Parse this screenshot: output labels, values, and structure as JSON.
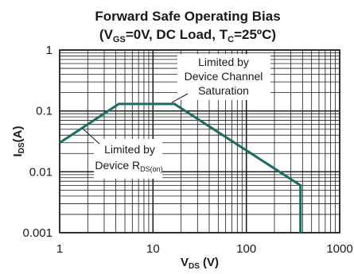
{
  "chart_data": {
    "type": "line",
    "title": {
      "line1": "Forward Safe Operating Bias",
      "line2": {
        "open": "(V",
        "vgs_sub": "GS",
        "mid": "=0V, DC Load, T",
        "tc_sub": "C",
        "close": "=25ºC)"
      }
    },
    "xlabel": {
      "main": "V",
      "sub": "DS",
      "unit": " (V)"
    },
    "ylabel": {
      "main": "I",
      "sub": "DS",
      "unit": "(A)"
    },
    "x_scale": "log",
    "y_scale": "log",
    "xlim": [
      1,
      1000
    ],
    "ylim": [
      0.001,
      1
    ],
    "x_ticks": [
      "1",
      "10",
      "100",
      "1000"
    ],
    "y_ticks": [
      "0.001",
      "0.01",
      "0.1",
      "1"
    ],
    "grid": true,
    "series": [
      {
        "color": "#1e6b5f",
        "points": [
          [
            1,
            0.03
          ],
          [
            4.3,
            0.13
          ],
          [
            17,
            0.13
          ],
          [
            380,
            0.006
          ],
          [
            380,
            0.001
          ]
        ]
      }
    ],
    "annotations": [
      {
        "lines": [
          "Limited by",
          "Device Channel",
          "Saturation"
        ]
      },
      {
        "lines": [
          "Limited by"
        ],
        "last": {
          "main": "Device R",
          "sub": "DS(on)"
        }
      }
    ]
  }
}
